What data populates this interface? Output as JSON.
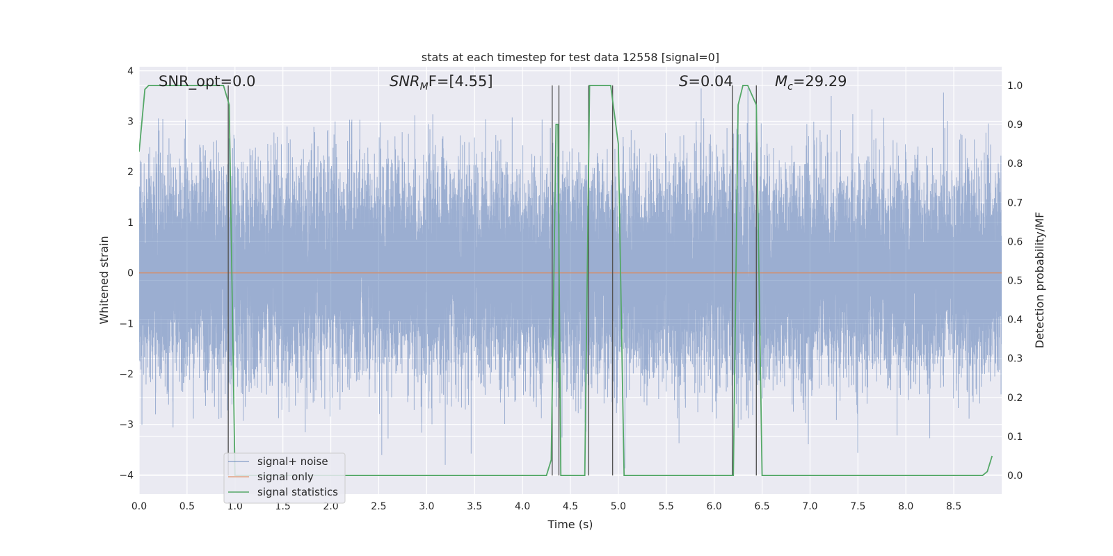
{
  "chart_data": {
    "type": "line",
    "title": "stats at each timestep for test data 12558 [signal=0]",
    "xlabel": "Time (s)",
    "ylabel": "Whitened strain",
    "ylabel_right": "Detection probability/MF",
    "xlim": [
      0,
      9
    ],
    "ylim": [
      -4.38,
      4.08
    ],
    "ylim_right": [
      -0.048,
      1.048
    ],
    "x_ticks": [
      "0.0",
      "0.5",
      "1.0",
      "1.5",
      "2.0",
      "2.5",
      "3.0",
      "3.5",
      "4.0",
      "4.5",
      "5.0",
      "5.5",
      "6.0",
      "6.5",
      "7.0",
      "7.5",
      "8.0",
      "8.5"
    ],
    "y_ticks": [
      "4",
      "3",
      "2",
      "1",
      "0",
      "−1",
      "−2",
      "−3",
      "−4"
    ],
    "y_ticks_right": [
      "1.0",
      "0.9",
      "0.8",
      "0.7",
      "0.6",
      "0.5",
      "0.4",
      "0.3",
      "0.2",
      "0.1",
      "0.0"
    ],
    "grid": true,
    "legend_position": "lower-left",
    "annotations": {
      "snr_opt": "SNR_opt=0.0",
      "snr_mf_symbol": "SNR",
      "snr_mf_sub": "M",
      "snr_mf_rest": "F=[4.55]",
      "s_symbol": "S",
      "s_value": "=0.04",
      "mc_symbol": "M",
      "mc_sub": "c",
      "mc_value": "=29.29"
    },
    "series": [
      {
        "name": "signal+ noise",
        "color": "#4c72b0",
        "style": "dense-noise",
        "sample_rate_hz": 2048,
        "x_range": [
          0,
          9
        ],
        "spread_approx": 1.0,
        "y_range": [
          -4.0,
          3.65
        ]
      },
      {
        "name": "signal only",
        "color": "#dd8452",
        "x": [
          0,
          9
        ],
        "y": [
          0,
          0
        ]
      },
      {
        "name": "signal statistics",
        "color": "#55a868",
        "axis": "right",
        "x": [
          0.0,
          0.06,
          0.1,
          0.88,
          0.94,
          1.0,
          1.04,
          4.25,
          4.3,
          4.35,
          4.37,
          4.4,
          4.6,
          4.65,
          4.7,
          4.85,
          4.92,
          5.0,
          5.06,
          6.2,
          6.25,
          6.3,
          6.35,
          6.44,
          6.5,
          6.6,
          6.7,
          6.8,
          8.8,
          8.85,
          8.9
        ],
        "y": [
          0.83,
          0.99,
          1.0,
          1.0,
          0.95,
          0.0,
          0.0,
          0.0,
          0.04,
          0.9,
          0.9,
          0.0,
          0.0,
          0.0,
          1.0,
          1.0,
          1.0,
          0.85,
          0.0,
          0.0,
          0.95,
          1.0,
          1.0,
          0.95,
          0.0,
          0.0,
          0.0,
          0.0,
          0.0,
          0.01,
          0.05
        ]
      }
    ],
    "vertical_lines": {
      "color": "#555555",
      "x": [
        0.93,
        4.31,
        4.38,
        4.69,
        4.94,
        6.19,
        6.44
      ],
      "y_range_right": [
        0.0,
        1.0
      ]
    }
  },
  "legend": {
    "items": [
      {
        "label": "signal+ noise",
        "color": "#4c72b0"
      },
      {
        "label": "signal only",
        "color": "#dd8452"
      },
      {
        "label": "signal statistics",
        "color": "#55a868"
      }
    ]
  },
  "colors": {
    "plot_background": "#eaeaf2",
    "grid": "#ffffff"
  }
}
